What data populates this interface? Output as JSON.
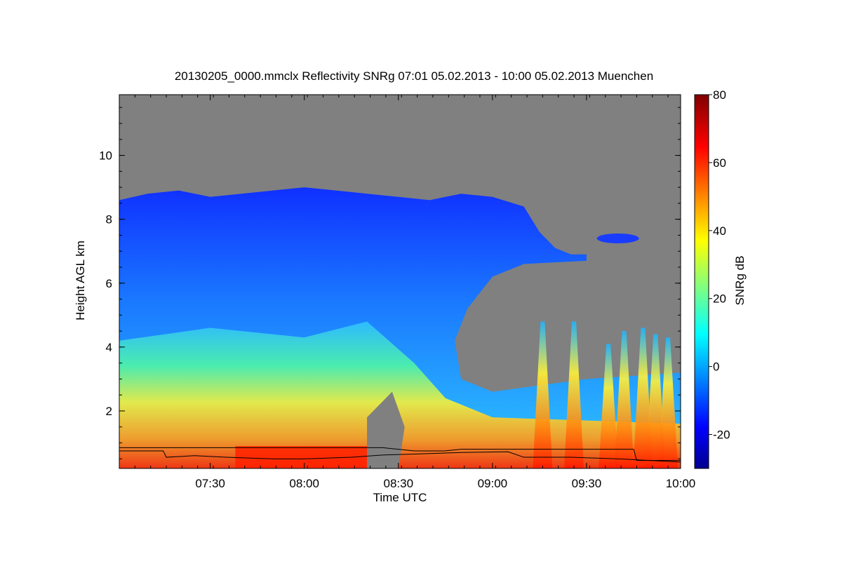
{
  "chart_data": {
    "type": "heatmap",
    "title": "20130205_0000.mmclx Reflectivity SNRg   07:01 05.02.2013 - 10:00 05.02.2013 Muenchen",
    "xlabel": "Time UTC",
    "ylabel": "Height AGL km",
    "x_ticks": [
      "07:30",
      "08:00",
      "08:30",
      "09:00",
      "09:30",
      "10:00"
    ],
    "x_tick_minutes": [
      30,
      60,
      90,
      120,
      150,
      180
    ],
    "xlim_minutes": [
      1,
      180
    ],
    "y_ticks": [
      2,
      4,
      6,
      8,
      10
    ],
    "ylim": [
      0.2,
      11.9
    ],
    "colorbar": {
      "label": "SNRg dB",
      "ticks": [
        80,
        60,
        40,
        20,
        0,
        -20
      ],
      "range": [
        -30,
        80
      ],
      "colormap": "jet"
    },
    "background_color": "#808080",
    "echo_top_profile_km": [
      [
        1,
        8.6
      ],
      [
        10,
        8.8
      ],
      [
        20,
        8.9
      ],
      [
        30,
        8.7
      ],
      [
        40,
        8.8
      ],
      [
        50,
        8.9
      ],
      [
        60,
        9.0
      ],
      [
        70,
        8.9
      ],
      [
        80,
        8.8
      ],
      [
        90,
        8.7
      ],
      [
        100,
        8.6
      ],
      [
        110,
        8.8
      ],
      [
        120,
        8.7
      ],
      [
        130,
        8.4
      ],
      [
        135,
        7.6
      ],
      [
        140,
        7.1
      ],
      [
        145,
        6.9
      ],
      [
        150,
        6.9
      ]
    ],
    "cloud_base_km": [
      [
        1,
        0.75
      ],
      [
        15,
        0.75
      ],
      [
        16,
        0.55
      ],
      [
        25,
        0.6
      ],
      [
        35,
        0.55
      ],
      [
        50,
        0.5
      ],
      [
        60,
        0.5
      ],
      [
        75,
        0.55
      ],
      [
        85,
        0.62
      ],
      [
        95,
        0.65
      ],
      [
        110,
        0.7
      ],
      [
        125,
        0.72
      ],
      [
        130,
        0.55
      ],
      [
        145,
        0.55
      ],
      [
        160,
        0.5
      ],
      [
        170,
        0.45
      ],
      [
        180,
        0.4
      ]
    ],
    "mixing_layer_km": [
      [
        1,
        0.85
      ],
      [
        85,
        0.85
      ],
      [
        95,
        0.75
      ],
      [
        105,
        0.75
      ],
      [
        110,
        0.8
      ],
      [
        120,
        0.8
      ],
      [
        165,
        0.8
      ],
      [
        166,
        0.45
      ],
      [
        180,
        0.45
      ]
    ]
  }
}
